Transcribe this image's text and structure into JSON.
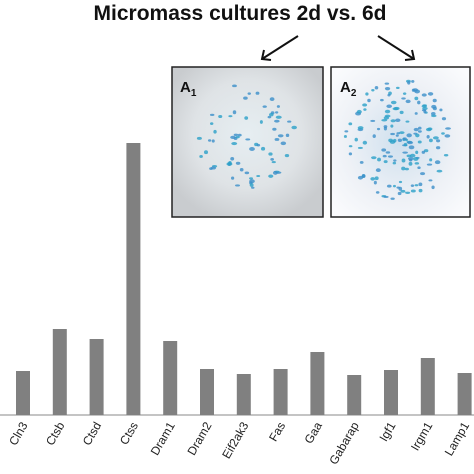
{
  "chart_data": {
    "type": "bar",
    "title": "Micromass cultures 2d vs. 6d",
    "panels": [
      {
        "letter": "A",
        "index": "1"
      },
      {
        "letter": "A",
        "index": "2"
      }
    ],
    "categories": [
      "Cln3",
      "Ctsb",
      "Ctsd",
      "Ctss",
      "Dram1",
      "Dram2",
      "Eif2ak3",
      "Fas",
      "Gaa",
      "Gabarap",
      "Igf1",
      "Irgm1",
      "Lamp1"
    ],
    "values": [
      44,
      86,
      76,
      272,
      74,
      46,
      41,
      46,
      63,
      40,
      45,
      57,
      42
    ],
    "color": "#808080"
  }
}
